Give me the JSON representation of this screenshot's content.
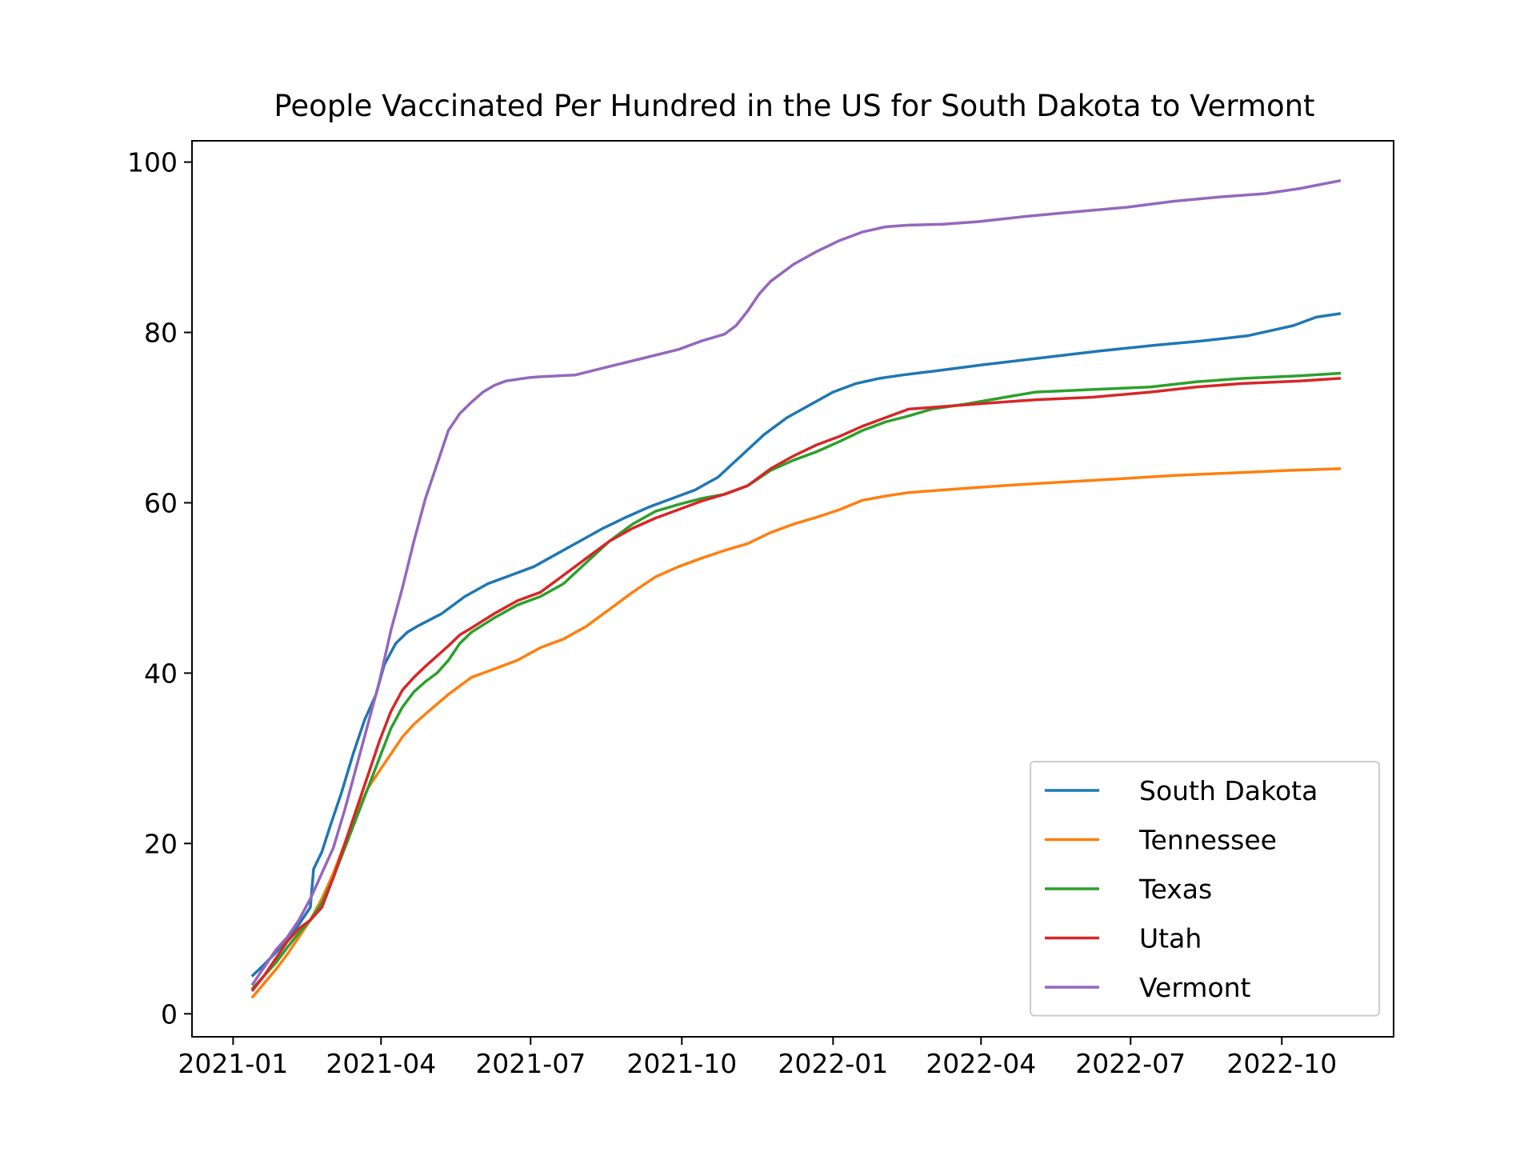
{
  "chart_data": {
    "type": "line",
    "title": "People Vaccinated Per Hundred in the US for South Dakota to Vermont",
    "xlabel": "",
    "ylabel": "",
    "x_type": "date",
    "xlim": [
      "2020-12-07",
      "2022-12-08"
    ],
    "ylim": [
      -2.7,
      102.5
    ],
    "xticks": [
      "2021-01-01",
      "2021-04-01",
      "2021-07-01",
      "2021-10-01",
      "2022-01-01",
      "2022-04-01",
      "2022-07-01",
      "2022-10-01"
    ],
    "xtick_labels": [
      "2021-01",
      "2021-04",
      "2021-07",
      "2021-10",
      "2022-01",
      "2022-04",
      "2022-07",
      "2022-10"
    ],
    "yticks": [
      0,
      20,
      40,
      60,
      80,
      100
    ],
    "ytick_labels": [
      "0",
      "20",
      "40",
      "60",
      "80",
      "100"
    ],
    "grid": false,
    "legend_position": "lower-right",
    "series": [
      {
        "name": "South Dakota",
        "color": "#1f77b4",
        "x": [
          "2021-01-13",
          "2021-01-20",
          "2021-01-27",
          "2021-02-03",
          "2021-02-10",
          "2021-02-17",
          "2021-02-19",
          "2021-02-24",
          "2021-03-01",
          "2021-03-08",
          "2021-03-15",
          "2021-03-22",
          "2021-03-29",
          "2021-04-03",
          "2021-04-10",
          "2021-04-17",
          "2021-04-24",
          "2021-05-08",
          "2021-05-22",
          "2021-06-05",
          "2021-06-19",
          "2021-07-03",
          "2021-07-17",
          "2021-07-31",
          "2021-08-14",
          "2021-08-28",
          "2021-09-11",
          "2021-09-25",
          "2021-10-09",
          "2021-10-23",
          "2021-11-06",
          "2021-11-20",
          "2021-12-04",
          "2021-12-18",
          "2022-01-01",
          "2022-01-15",
          "2022-01-29",
          "2022-02-12",
          "2022-03-05",
          "2022-04-02",
          "2022-05-07",
          "2022-06-11",
          "2022-07-16",
          "2022-08-13",
          "2022-09-10",
          "2022-09-24",
          "2022-10-08",
          "2022-10-22",
          "2022-11-05"
        ],
        "y": [
          4.5,
          5.8,
          7.2,
          8.8,
          10.5,
          12.5,
          17.0,
          19.0,
          22.0,
          26.0,
          30.5,
          34.5,
          37.5,
          41.0,
          43.5,
          44.8,
          45.6,
          47.0,
          49.0,
          50.5,
          51.5,
          52.5,
          54.0,
          55.5,
          57.0,
          58.3,
          59.5,
          60.5,
          61.5,
          63.0,
          65.5,
          68.0,
          70.0,
          71.5,
          73.0,
          74.0,
          74.6,
          75.0,
          75.5,
          76.2,
          77.0,
          77.8,
          78.5,
          79.0,
          79.6,
          80.2,
          80.8,
          81.8,
          82.2
        ]
      },
      {
        "name": "Tennessee",
        "color": "#ff7f0e",
        "x": [
          "2021-01-13",
          "2021-01-20",
          "2021-01-27",
          "2021-02-03",
          "2021-02-10",
          "2021-02-17",
          "2021-02-24",
          "2021-03-03",
          "2021-03-10",
          "2021-03-17",
          "2021-03-24",
          "2021-03-31",
          "2021-04-07",
          "2021-04-14",
          "2021-04-21",
          "2021-04-28",
          "2021-05-12",
          "2021-05-26",
          "2021-06-09",
          "2021-06-23",
          "2021-07-07",
          "2021-07-21",
          "2021-08-04",
          "2021-08-18",
          "2021-09-01",
          "2021-09-15",
          "2021-09-29",
          "2021-10-13",
          "2021-10-27",
          "2021-11-10",
          "2021-11-24",
          "2021-12-08",
          "2021-12-22",
          "2022-01-05",
          "2022-01-19",
          "2022-02-02",
          "2022-02-16",
          "2022-03-16",
          "2022-04-13",
          "2022-05-18",
          "2022-06-22",
          "2022-07-27",
          "2022-08-31",
          "2022-10-05",
          "2022-11-05"
        ],
        "y": [
          2.0,
          3.6,
          5.2,
          7.0,
          9.0,
          11.0,
          13.5,
          16.5,
          20.0,
          23.5,
          26.5,
          28.5,
          30.5,
          32.5,
          34.0,
          35.2,
          37.5,
          39.5,
          40.5,
          41.5,
          43.0,
          44.0,
          45.5,
          47.5,
          49.5,
          51.3,
          52.5,
          53.5,
          54.4,
          55.2,
          56.5,
          57.5,
          58.3,
          59.2,
          60.3,
          60.8,
          61.2,
          61.6,
          62.0,
          62.4,
          62.8,
          63.2,
          63.5,
          63.8,
          64.0
        ]
      },
      {
        "name": "Texas",
        "color": "#2ca02c",
        "x": [
          "2021-01-13",
          "2021-01-20",
          "2021-01-27",
          "2021-02-03",
          "2021-02-10",
          "2021-02-17",
          "2021-02-24",
          "2021-03-03",
          "2021-03-10",
          "2021-03-17",
          "2021-03-24",
          "2021-03-31",
          "2021-04-07",
          "2021-04-14",
          "2021-04-21",
          "2021-04-28",
          "2021-05-05",
          "2021-05-12",
          "2021-05-19",
          "2021-05-26",
          "2021-06-09",
          "2021-06-23",
          "2021-07-07",
          "2021-07-21",
          "2021-08-04",
          "2021-08-18",
          "2021-09-01",
          "2021-09-15",
          "2021-09-29",
          "2021-10-13",
          "2021-10-27",
          "2021-11-10",
          "2021-11-24",
          "2021-12-08",
          "2021-12-22",
          "2022-01-05",
          "2022-01-19",
          "2022-02-02",
          "2022-02-16",
          "2022-03-02",
          "2022-03-23",
          "2022-04-13",
          "2022-05-04",
          "2022-06-08",
          "2022-07-13",
          "2022-08-10",
          "2022-09-07",
          "2022-10-12",
          "2022-11-05"
        ],
        "y": [
          3.0,
          4.5,
          6.0,
          7.8,
          9.5,
          11.0,
          13.0,
          16.0,
          19.5,
          23.0,
          26.5,
          30.0,
          33.5,
          36.0,
          37.8,
          39.0,
          40.0,
          41.5,
          43.5,
          44.8,
          46.5,
          48.0,
          49.0,
          50.5,
          53.0,
          55.5,
          57.5,
          59.0,
          59.8,
          60.5,
          61.0,
          62.0,
          63.8,
          65.0,
          66.0,
          67.2,
          68.5,
          69.5,
          70.2,
          71.0,
          71.6,
          72.3,
          73.0,
          73.3,
          73.6,
          74.2,
          74.6,
          74.9,
          75.2
        ]
      },
      {
        "name": "Utah",
        "color": "#d62728",
        "x": [
          "2021-01-13",
          "2021-01-20",
          "2021-01-27",
          "2021-02-03",
          "2021-02-10",
          "2021-02-17",
          "2021-02-24",
          "2021-03-03",
          "2021-03-10",
          "2021-03-17",
          "2021-03-24",
          "2021-03-31",
          "2021-04-07",
          "2021-04-14",
          "2021-04-21",
          "2021-04-28",
          "2021-05-05",
          "2021-05-12",
          "2021-05-19",
          "2021-05-26",
          "2021-06-09",
          "2021-06-23",
          "2021-07-07",
          "2021-07-21",
          "2021-08-04",
          "2021-08-18",
          "2021-09-01",
          "2021-09-15",
          "2021-09-29",
          "2021-10-13",
          "2021-10-27",
          "2021-11-10",
          "2021-11-24",
          "2021-12-08",
          "2021-12-22",
          "2022-01-05",
          "2022-01-19",
          "2022-02-02",
          "2022-02-16",
          "2022-03-02",
          "2022-03-23",
          "2022-04-13",
          "2022-05-04",
          "2022-06-08",
          "2022-07-13",
          "2022-08-10",
          "2022-09-07",
          "2022-10-12",
          "2022-11-05"
        ],
        "y": [
          2.8,
          4.5,
          6.5,
          8.5,
          10.0,
          11.0,
          12.5,
          16.0,
          20.0,
          24.0,
          28.0,
          32.0,
          35.5,
          38.0,
          39.5,
          40.8,
          42.0,
          43.2,
          44.5,
          45.3,
          47.0,
          48.5,
          49.5,
          51.5,
          53.5,
          55.5,
          57.0,
          58.2,
          59.2,
          60.2,
          61.0,
          62.0,
          64.0,
          65.5,
          66.8,
          67.8,
          69.0,
          70.0,
          71.0,
          71.2,
          71.5,
          71.8,
          72.1,
          72.4,
          73.0,
          73.6,
          74.0,
          74.3,
          74.6
        ]
      },
      {
        "name": "Vermont",
        "color": "#9467bd",
        "x": [
          "2021-01-13",
          "2021-01-20",
          "2021-01-27",
          "2021-02-03",
          "2021-02-10",
          "2021-02-17",
          "2021-02-24",
          "2021-03-03",
          "2021-03-10",
          "2021-03-17",
          "2021-03-24",
          "2021-03-31",
          "2021-04-07",
          "2021-04-14",
          "2021-04-21",
          "2021-04-28",
          "2021-05-05",
          "2021-05-12",
          "2021-05-19",
          "2021-05-26",
          "2021-06-02",
          "2021-06-09",
          "2021-06-16",
          "2021-06-23",
          "2021-06-30",
          "2021-07-07",
          "2021-07-28",
          "2021-08-18",
          "2021-09-08",
          "2021-09-29",
          "2021-10-13",
          "2021-10-27",
          "2021-11-03",
          "2021-11-10",
          "2021-11-17",
          "2021-11-24",
          "2021-12-08",
          "2021-12-22",
          "2022-01-05",
          "2022-01-19",
          "2022-02-02",
          "2022-02-16",
          "2022-03-09",
          "2022-03-30",
          "2022-04-27",
          "2022-05-25",
          "2022-06-29",
          "2022-07-27",
          "2022-08-24",
          "2022-09-21",
          "2022-10-12",
          "2022-11-05"
        ],
        "y": [
          3.5,
          5.5,
          7.5,
          9.0,
          11.0,
          13.5,
          16.5,
          19.5,
          24.0,
          29.0,
          34.0,
          39.0,
          45.0,
          50.0,
          55.5,
          60.5,
          64.5,
          68.5,
          70.5,
          71.8,
          73.0,
          73.8,
          74.3,
          74.5,
          74.7,
          74.8,
          75.0,
          76.0,
          77.0,
          78.0,
          79.0,
          79.8,
          80.8,
          82.5,
          84.5,
          86.0,
          88.0,
          89.5,
          90.8,
          91.8,
          92.4,
          92.6,
          92.7,
          93.0,
          93.6,
          94.1,
          94.7,
          95.4,
          95.9,
          96.3,
          96.9,
          97.8
        ]
      }
    ]
  }
}
